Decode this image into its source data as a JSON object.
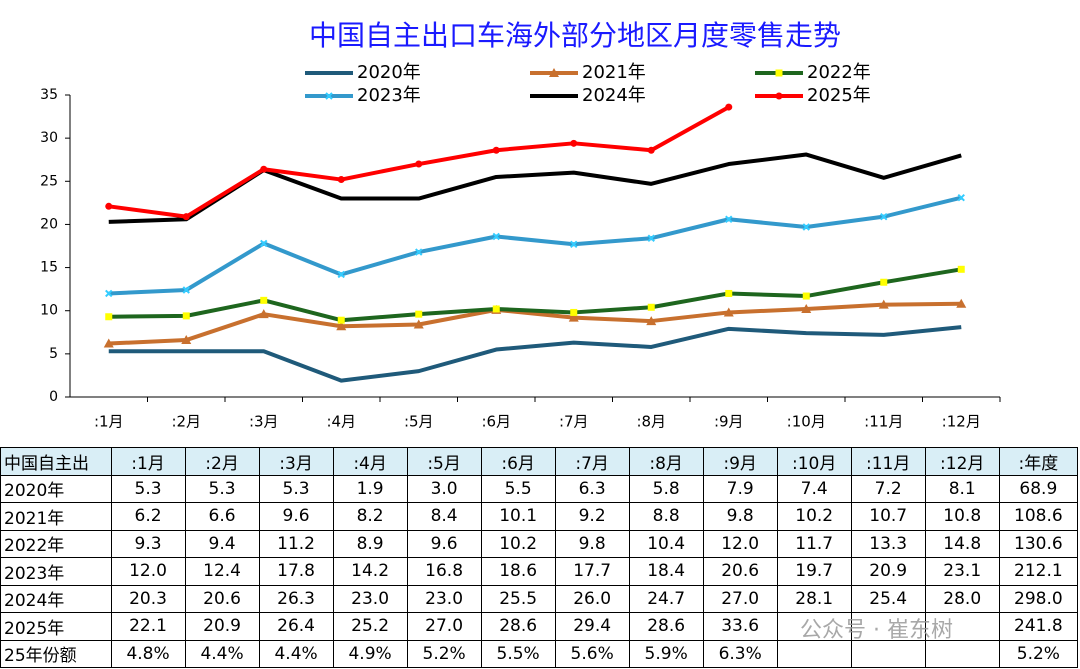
{
  "chart_data": {
    "type": "line",
    "title": "中国自主出口车海外部分地区月度零售走势",
    "categories": [
      ":1月",
      ":2月",
      ":3月",
      ":4月",
      ":5月",
      ":6月",
      ":7月",
      ":8月",
      ":9月",
      ":10月",
      ":11月",
      ":12月"
    ],
    "series": [
      {
        "name": "2020年",
        "color": "#1f5a7a",
        "marker": "none",
        "values": [
          5.3,
          5.3,
          5.3,
          1.9,
          3.0,
          5.5,
          6.3,
          5.8,
          7.9,
          7.4,
          7.2,
          8.1
        ]
      },
      {
        "name": "2021年",
        "color": "#c8702e",
        "marker": "triangle",
        "marker_color": "#c8702e",
        "values": [
          6.2,
          6.6,
          9.6,
          8.2,
          8.4,
          10.1,
          9.2,
          8.8,
          9.8,
          10.2,
          10.7,
          10.8
        ]
      },
      {
        "name": "2022年",
        "color": "#1e661e",
        "marker": "square",
        "marker_color": "#ffff00",
        "values": [
          9.3,
          9.4,
          11.2,
          8.9,
          9.6,
          10.2,
          9.8,
          10.4,
          12.0,
          11.7,
          13.3,
          14.8
        ]
      },
      {
        "name": "2023年",
        "color": "#3399cc",
        "marker": "x",
        "marker_color": "#33ccff",
        "values": [
          12.0,
          12.4,
          17.8,
          14.2,
          16.8,
          18.6,
          17.7,
          18.4,
          20.6,
          19.7,
          20.9,
          23.1
        ]
      },
      {
        "name": "2024年",
        "color": "#000000",
        "marker": "none",
        "values": [
          20.3,
          20.6,
          26.3,
          23.0,
          23.0,
          25.5,
          26.0,
          24.7,
          27.0,
          28.1,
          25.4,
          28.0
        ]
      },
      {
        "name": "2025年",
        "color": "#ff0000",
        "marker": "circle",
        "marker_color": "#ff0000",
        "values": [
          22.1,
          20.9,
          26.4,
          25.2,
          27.0,
          28.6,
          29.4,
          28.6,
          33.6,
          null,
          null,
          null
        ]
      }
    ],
    "ylim": [
      0,
      35
    ],
    "yticks": [
      0,
      5,
      10,
      15,
      20,
      25,
      30,
      35
    ],
    "grid": false
  },
  "table": {
    "header": [
      "中国自主出",
      ":1月",
      ":2月",
      ":3月",
      ":4月",
      ":5月",
      ":6月",
      ":7月",
      ":8月",
      ":9月",
      ":10月",
      ":11月",
      ":12月",
      ":年度"
    ],
    "rows": [
      [
        "2020年",
        "5.3",
        "5.3",
        "5.3",
        "1.9",
        "3.0",
        "5.5",
        "6.3",
        "5.8",
        "7.9",
        "7.4",
        "7.2",
        "8.1",
        "68.9"
      ],
      [
        "2021年",
        "6.2",
        "6.6",
        "9.6",
        "8.2",
        "8.4",
        "10.1",
        "9.2",
        "8.8",
        "9.8",
        "10.2",
        "10.7",
        "10.8",
        "108.6"
      ],
      [
        "2022年",
        "9.3",
        "9.4",
        "11.2",
        "8.9",
        "9.6",
        "10.2",
        "9.8",
        "10.4",
        "12.0",
        "11.7",
        "13.3",
        "14.8",
        "130.6"
      ],
      [
        "2023年",
        "12.0",
        "12.4",
        "17.8",
        "14.2",
        "16.8",
        "18.6",
        "17.7",
        "18.4",
        "20.6",
        "19.7",
        "20.9",
        "23.1",
        "212.1"
      ],
      [
        "2024年",
        "20.3",
        "20.6",
        "26.3",
        "23.0",
        "23.0",
        "25.5",
        "26.0",
        "24.7",
        "27.0",
        "28.1",
        "25.4",
        "28.0",
        "298.0"
      ],
      [
        "2025年",
        "22.1",
        "20.9",
        "26.4",
        "25.2",
        "27.0",
        "28.6",
        "29.4",
        "28.6",
        "33.6",
        null,
        null,
        null,
        "241.8"
      ],
      [
        "25年份额",
        "4.8%",
        "4.4%",
        "4.4%",
        "4.9%",
        "5.2%",
        "5.5%",
        "5.6%",
        "5.9%",
        "6.3%",
        null,
        null,
        null,
        "5.2%"
      ]
    ]
  },
  "watermark": "公众号 · 崔东树"
}
